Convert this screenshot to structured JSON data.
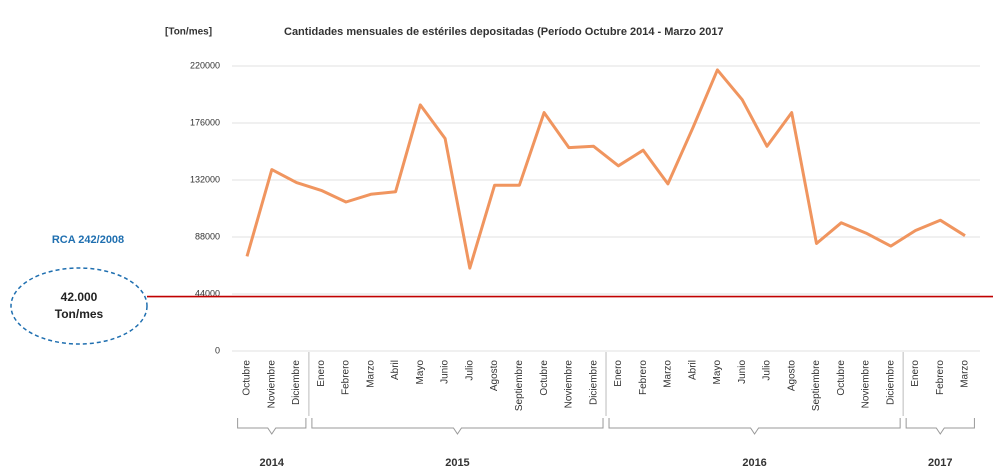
{
  "chart_data": {
    "type": "line",
    "title": "Cantidades mensuales de estériles depositadas (Período Octubre 2014 - Marzo 2017",
    "y_label": "[Ton/mes]",
    "groups": [
      {
        "label": "2014",
        "categories": [
          "Octubre",
          "Noviembre",
          "Diciembre"
        ]
      },
      {
        "label": "2015",
        "categories": [
          "Enero",
          "Febrero",
          "Marzo",
          "Abril",
          "Mayo",
          "Junio",
          "Julio",
          "Agosto",
          "Septiembre",
          "Octubre",
          "Noviembre",
          "Diciembre"
        ]
      },
      {
        "label": "2016",
        "categories": [
          "Enero",
          "Febrero",
          "Marzo",
          "Abril",
          "Mayo",
          "Junio",
          "Julio",
          "Agosto",
          "Septiembre",
          "Octubre",
          "Noviembre",
          "Diciembre"
        ]
      },
      {
        "label": "2017",
        "categories": [
          "Enero",
          "Febrero",
          "Marzo"
        ]
      }
    ],
    "series": [
      {
        "name": "Estériles",
        "color": "#f0955f",
        "values": [
          73000,
          140000,
          130000,
          124000,
          115000,
          121000,
          123000,
          190000,
          164000,
          64000,
          128000,
          128000,
          184000,
          157000,
          158000,
          143000,
          155000,
          129000,
          172000,
          217000,
          194000,
          158000,
          184000,
          83000,
          99000,
          91000,
          81000,
          93000,
          101000,
          89000
        ]
      }
    ],
    "ylim": [
      0,
      220000
    ],
    "yticks": [
      0,
      44000,
      88000,
      132000,
      176000,
      220000
    ],
    "grid": true,
    "reference_line": {
      "value": 42000,
      "color": "#c00000",
      "label_lines": [
        "42.000",
        "Ton/mes"
      ],
      "caption": "RCA 242/2008"
    }
  }
}
